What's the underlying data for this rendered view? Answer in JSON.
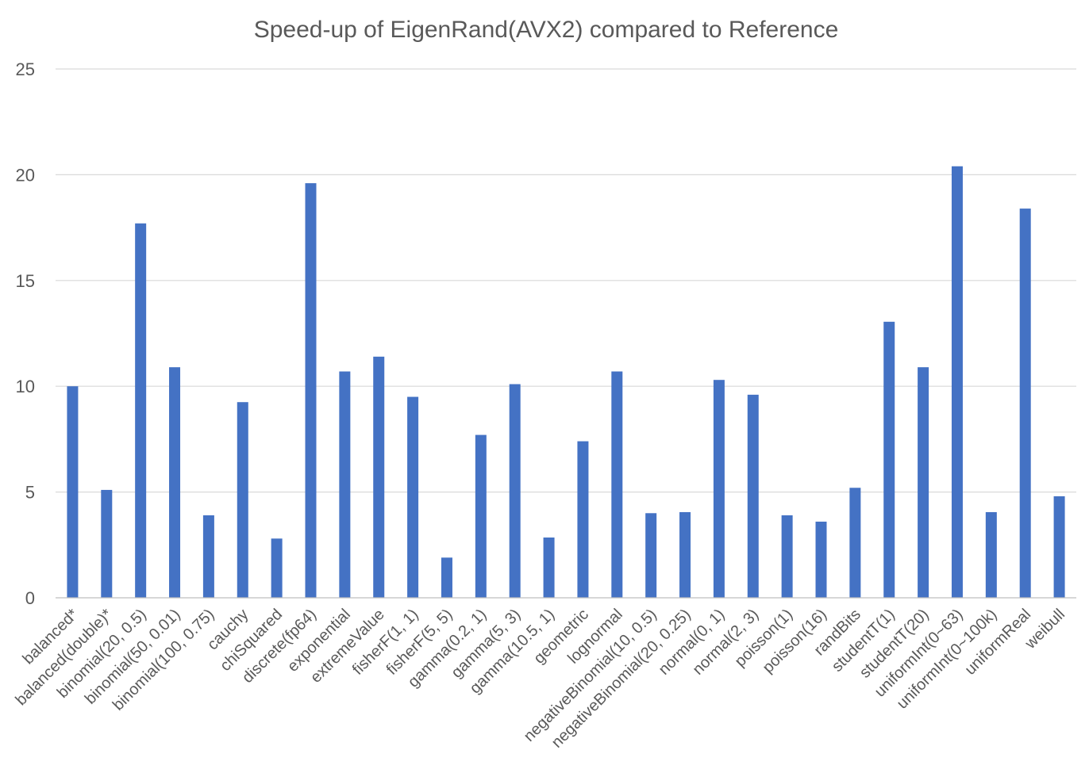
{
  "chart_data": {
    "type": "bar",
    "title": "Speed-up of EigenRand(AVX2) compared to Reference",
    "xlabel": "",
    "ylabel": "",
    "ylim": [
      0,
      25
    ],
    "yticks": [
      0,
      5,
      10,
      15,
      20,
      25
    ],
    "grid": true,
    "legend": "none",
    "bar_color": "#4472C4",
    "categories": [
      "balanced*",
      "balanced(double)*",
      "binomial(20, 0.5)",
      "binomial(50, 0.01)",
      "binomial(100, 0.75)",
      "cauchy",
      "chiSquared",
      "discrete(fp64)",
      "exponential",
      "extremeValue",
      "fisherF(1, 1)",
      "fisherF(5, 5)",
      "gamma(0.2, 1)",
      "gamma(5, 3)",
      "gamma(10.5, 1)",
      "geometric",
      "lognormal",
      "negativeBinomial(10, 0.5)",
      "negativeBinomial(20, 0.25)",
      "normal(0, 1)",
      "normal(2, 3)",
      "poisson(1)",
      "poisson(16)",
      "randBits",
      "studentT(1)",
      "studentT(20)",
      "uniformInt(0~63)",
      "uniformInt(0~100k)",
      "uniformReal",
      "weibull"
    ],
    "values": [
      10.0,
      5.1,
      17.7,
      10.9,
      3.9,
      9.25,
      2.8,
      19.6,
      10.7,
      11.4,
      9.5,
      1.9,
      7.7,
      10.1,
      2.85,
      7.4,
      10.7,
      4.0,
      4.05,
      10.3,
      9.6,
      3.9,
      3.6,
      5.2,
      13.05,
      10.9,
      20.4,
      4.05,
      18.4,
      4.8
    ]
  }
}
